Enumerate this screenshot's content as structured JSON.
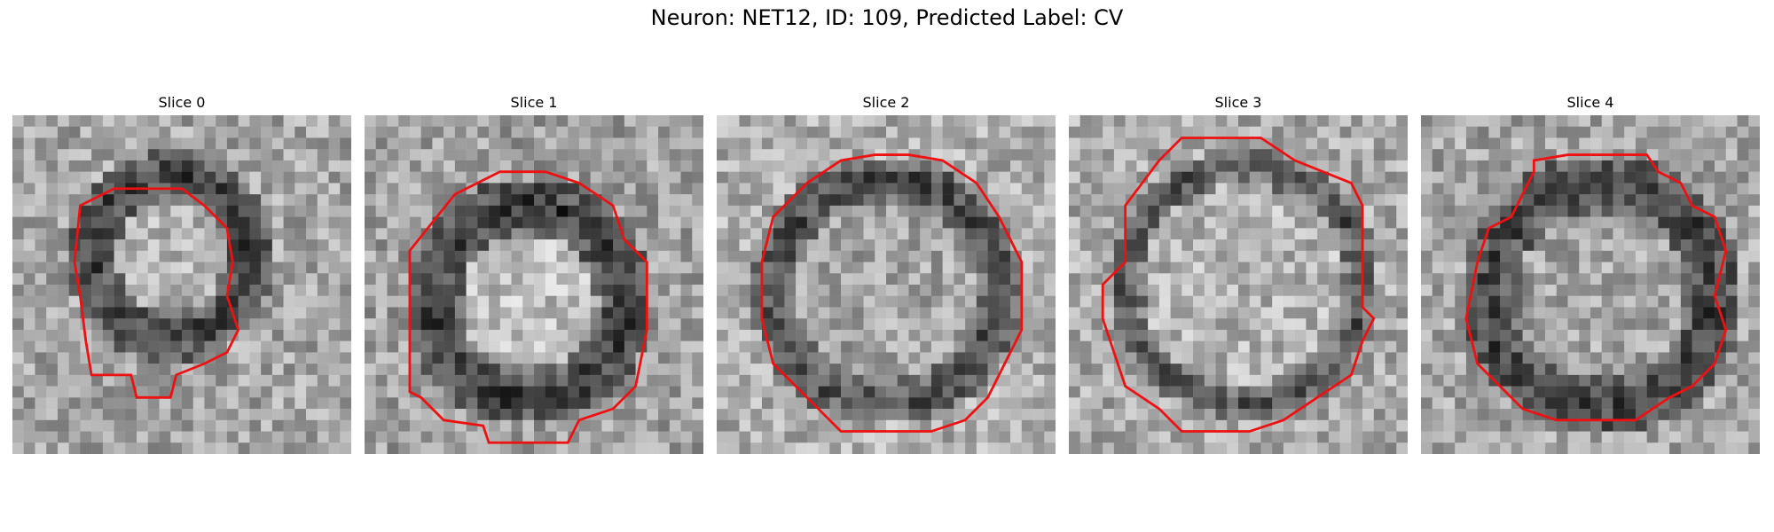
{
  "figure": {
    "title": "Neuron: NET12, ID: 109, Predicted Label: CV"
  },
  "colors": {
    "contour": "#ee1111",
    "colormap": "gray"
  },
  "panels": [
    {
      "title": "Slice 0"
    },
    {
      "title": "Slice 1"
    },
    {
      "title": "Slice 2"
    },
    {
      "title": "Slice 3"
    },
    {
      "title": "Slice 4"
    }
  ]
}
